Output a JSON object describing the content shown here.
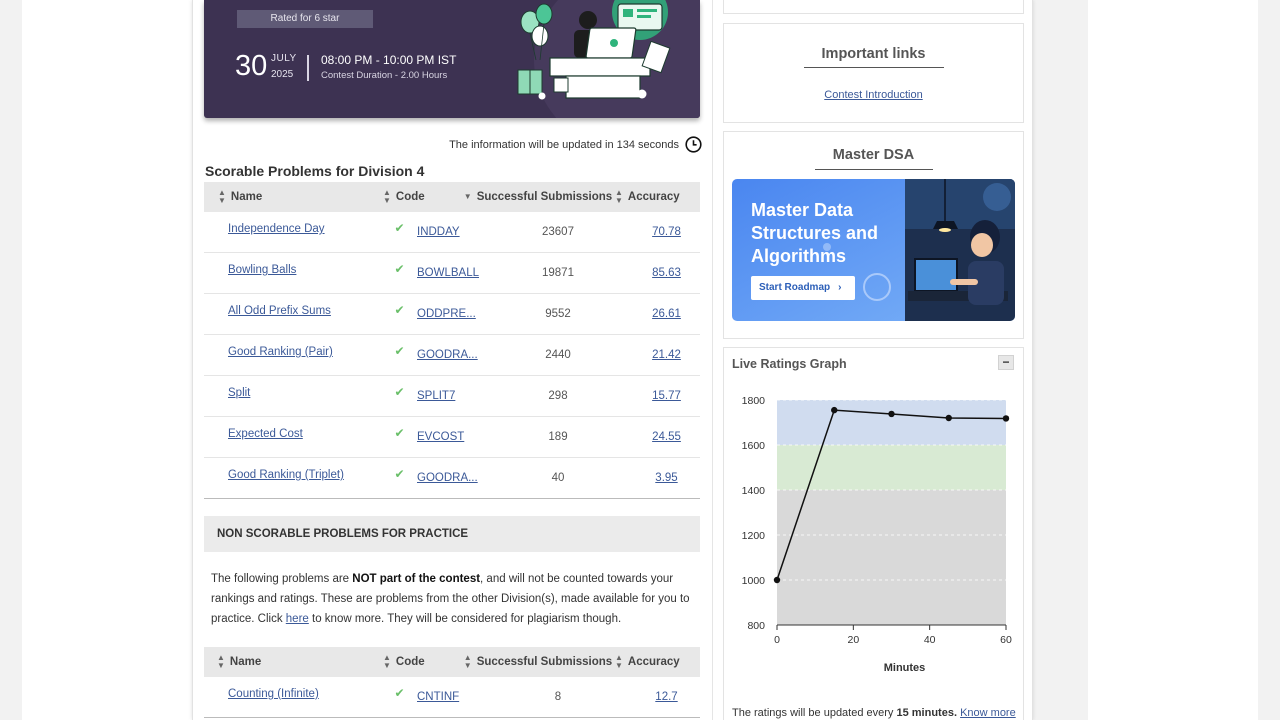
{
  "banner": {
    "rated_label": "Rated for 6 star",
    "day": "30",
    "month": "JULY",
    "year": "2025",
    "time": "08:00 PM - 10:00 PM IST",
    "duration": "Contest Duration - 2.00 Hours"
  },
  "update_notice": "The information will be updated in 134 seconds",
  "scorable": {
    "title": "Scorable Problems for Division 4",
    "headers": {
      "name": "Name",
      "code": "Code",
      "subs": "Successful Submissions",
      "accuracy": "Accuracy"
    },
    "rows": [
      {
        "name": "Independence Day",
        "code": "INDDAY",
        "subs": "23607",
        "accuracy": "70.78"
      },
      {
        "name": "Bowling Balls",
        "code": "BOWLBALL",
        "subs": "19871",
        "accuracy": "85.63"
      },
      {
        "name": "All Odd Prefix Sums",
        "code": "ODDPRE...",
        "subs": "9552",
        "accuracy": "26.61"
      },
      {
        "name": "Good Ranking (Pair)",
        "code": "GOODRA...",
        "subs": "2440",
        "accuracy": "21.42"
      },
      {
        "name": "Split",
        "code": "SPLIT7",
        "subs": "298",
        "accuracy": "15.77"
      },
      {
        "name": "Expected Cost",
        "code": "EVCOST",
        "subs": "189",
        "accuracy": "24.55"
      },
      {
        "name": "Good Ranking (Triplet)",
        "code": "GOODRA...",
        "subs": "40",
        "accuracy": "3.95"
      }
    ]
  },
  "nonscorable": {
    "title": "NON SCORABLE PROBLEMS FOR PRACTICE",
    "text_1": "The following problems are ",
    "text_bold": "NOT part of the contest",
    "text_2": ", and will not be counted towards your rankings and ratings. These are problems from the other Division(s), made available for you to practice. Click ",
    "here": "here",
    "text_3": " to know more. They will be considered for plagiarism though.",
    "headers": {
      "name": "Name",
      "code": "Code",
      "subs": "Successful Submissions",
      "accuracy": "Accuracy"
    },
    "rows": [
      {
        "name": "Counting (Infinite)",
        "code": "CNTINF",
        "subs": "8",
        "accuracy": "12.7"
      }
    ]
  },
  "important_links": {
    "title": "Important links",
    "link": "Contest Introduction"
  },
  "master_dsa": {
    "title": "Master DSA",
    "promo_heading_1": "Master Data",
    "promo_heading_2": "Structures and",
    "promo_heading_3": "Algorithms",
    "promo_button": "Start Roadmap"
  },
  "ratings_graph": {
    "title": "Live Ratings Graph",
    "collapse_label": "−",
    "note_1": "The ratings will be updated every ",
    "note_bold": "15 minutes.",
    "note_link": "Know more"
  },
  "chart_data": {
    "type": "line",
    "title": "",
    "xlabel": "Minutes",
    "ylabel": "",
    "x": [
      0,
      15,
      30,
      45,
      60
    ],
    "series": [
      {
        "values": [
          1000,
          1755,
          1738,
          1720,
          1718
        ]
      }
    ],
    "xlim": [
      0,
      60
    ],
    "ylim": [
      800,
      1800
    ],
    "xticks": [
      0,
      20,
      40,
      60
    ],
    "yticks": [
      800,
      1000,
      1200,
      1400,
      1600,
      1800
    ],
    "bands": [
      {
        "from": 800,
        "to": 1400,
        "color": "#d9d9d9"
      },
      {
        "from": 1400,
        "to": 1600,
        "color": "#d8ead3"
      },
      {
        "from": 1600,
        "to": 1800,
        "color": "#d0dcef"
      }
    ],
    "grid": true,
    "line_color": "#111111"
  }
}
